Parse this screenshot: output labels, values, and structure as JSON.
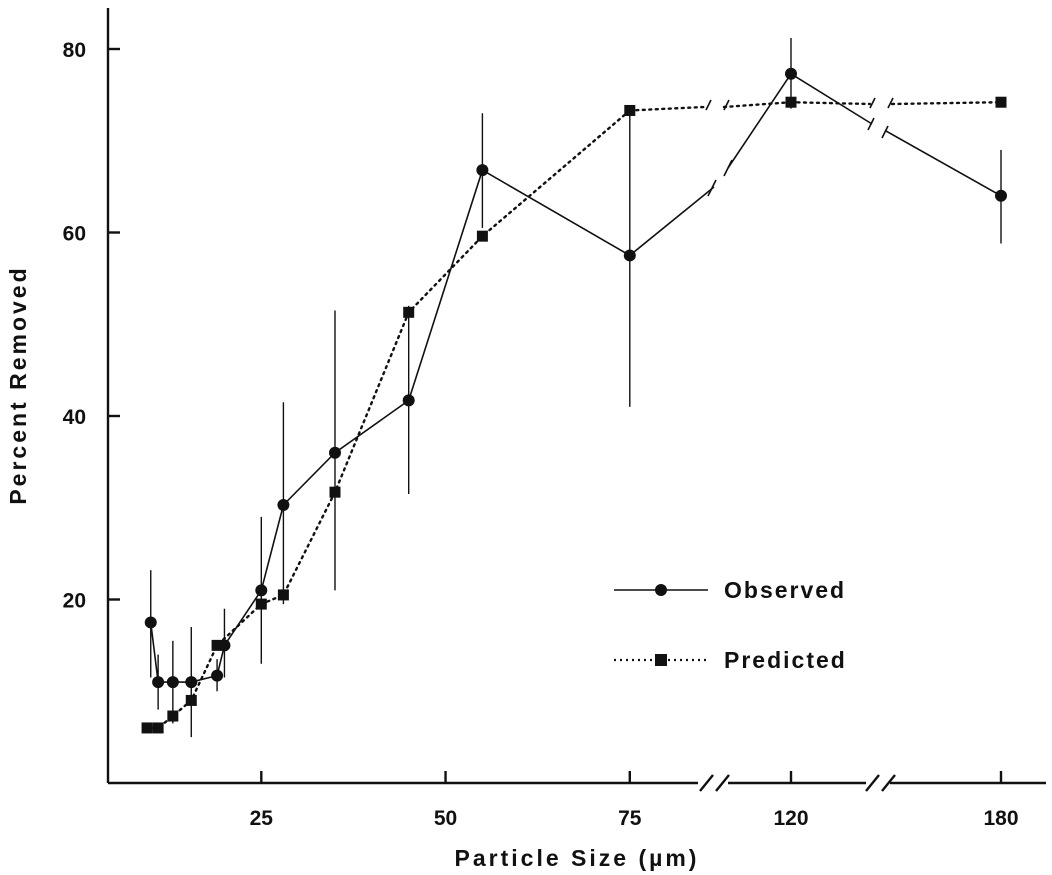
{
  "chart_data": {
    "type": "line",
    "title": "",
    "xlabel": "Particle Size (µm)",
    "ylabel": "Percent Removed",
    "ylim": [
      0,
      85
    ],
    "y_ticks": [
      20,
      40,
      60,
      80
    ],
    "y_tick_labels": [
      "20",
      "40",
      "60",
      "80"
    ],
    "x_axis": "broken linear axis (breaks between 75 and 120, and between 120 and 180)",
    "x_ticks": [
      25,
      50,
      75,
      120,
      180
    ],
    "x_tick_labels": [
      "25",
      "50",
      "75",
      "120",
      "180"
    ],
    "legend_position": "center-right",
    "series": [
      {
        "name": "Observed",
        "marker": "circle",
        "line": "solid",
        "points": [
          {
            "x": 10,
            "y": 17.5,
            "err_low": 11.5,
            "err_high": 23.2
          },
          {
            "x": 11,
            "y": 11.0,
            "err_low": 8.0,
            "err_high": 14.0
          },
          {
            "x": 13,
            "y": 11.0,
            "err_low": 6.5,
            "err_high": 15.5
          },
          {
            "x": 15.5,
            "y": 11.0,
            "err_low": 5.0,
            "err_high": 17.0
          },
          {
            "x": 19,
            "y": 11.7,
            "err_low": 10.0,
            "err_high": 13.5
          },
          {
            "x": 20,
            "y": 15.0,
            "err_low": 11.5,
            "err_high": 19.0
          },
          {
            "x": 25,
            "y": 21.0,
            "err_low": 13.0,
            "err_high": 29.0
          },
          {
            "x": 28,
            "y": 30.3,
            "err_low": 19.5,
            "err_high": 41.5
          },
          {
            "x": 35,
            "y": 36.0,
            "err_low": 21.0,
            "err_high": 51.5
          },
          {
            "x": 45,
            "y": 41.7,
            "err_low": 31.5,
            "err_high": 52.0
          },
          {
            "x": 55,
            "y": 66.8,
            "err_low": 60.5,
            "err_high": 73.0
          },
          {
            "x": 75,
            "y": 57.5,
            "err_low": 41.0,
            "err_high": 73.5
          },
          {
            "x": 120,
            "y": 77.3,
            "err_low": 73.5,
            "err_high": 81.2
          },
          {
            "x": 180,
            "y": 64.0,
            "err_low": 58.8,
            "err_high": 69.0
          }
        ]
      },
      {
        "name": "Predicted",
        "marker": "square",
        "line": "dotted",
        "points": [
          {
            "x": 9.5,
            "y": 6.0
          },
          {
            "x": 11,
            "y": 6.0
          },
          {
            "x": 13,
            "y": 7.3
          },
          {
            "x": 15.5,
            "y": 9.0
          },
          {
            "x": 19,
            "y": 15.0
          },
          {
            "x": 25,
            "y": 19.5
          },
          {
            "x": 28,
            "y": 20.5
          },
          {
            "x": 35,
            "y": 31.7
          },
          {
            "x": 45,
            "y": 51.3
          },
          {
            "x": 55,
            "y": 59.6
          },
          {
            "x": 75,
            "y": 73.3
          },
          {
            "x": 120,
            "y": 74.2
          },
          {
            "x": 180,
            "y": 74.2
          }
        ]
      }
    ]
  },
  "legend": {
    "observed_label": "Observed",
    "predicted_label": "Predicted"
  }
}
